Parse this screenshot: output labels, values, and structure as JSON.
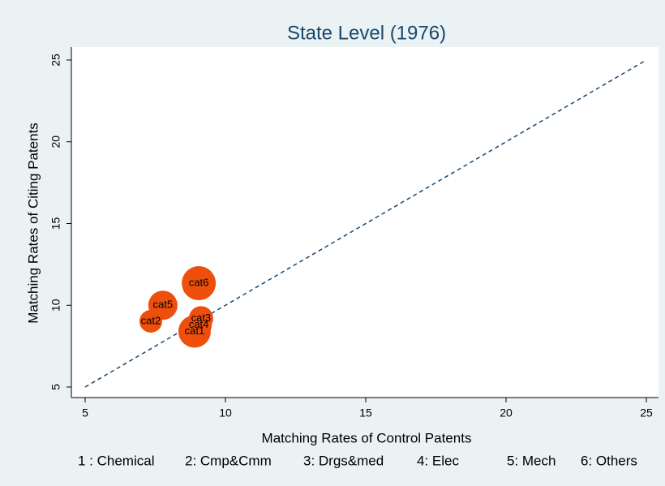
{
  "chart_data": {
    "type": "scatter",
    "title": "State Level (1976)",
    "x_label": "Matching Rates of Control Patents",
    "y_label": "Matching Rates of Citing Patents",
    "labels": [
      "cat1",
      "cat2",
      "cat3",
      "cat4",
      "cat5",
      "cat6"
    ],
    "x": [
      8.9,
      7.34,
      9.13,
      9.05,
      7.77,
      9.05
    ],
    "values": [
      8.4,
      9.02,
      9.2,
      8.8,
      10.0,
      11.35
    ],
    "sizes": [
      400,
      196,
      225,
      256,
      324,
      441
    ],
    "color": "#ee4f0c",
    "reference_line": {
      "x": [
        5,
        25
      ],
      "y": [
        5,
        25
      ],
      "color": "#1a476f"
    },
    "xlim": [
      5,
      25
    ],
    "ylim": [
      5,
      25
    ],
    "xticks": [
      5,
      10,
      15,
      20,
      25
    ],
    "yticks": [
      5,
      10,
      15,
      20,
      25
    ],
    "notes": [
      "1 : Chemical",
      "2: Cmp&Cmm",
      "3: Drgs&med",
      "4: Elec",
      "5: Mech",
      "6: Others"
    ]
  }
}
